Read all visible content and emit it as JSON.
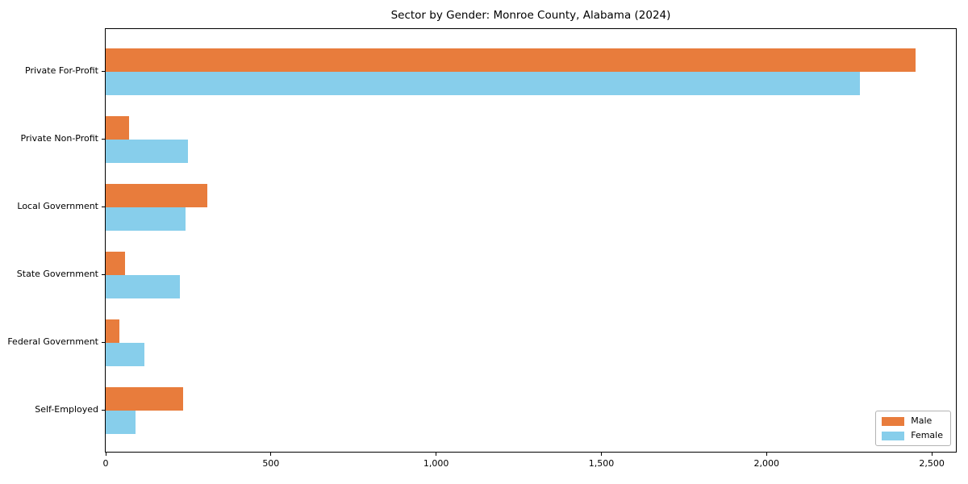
{
  "chart_data": {
    "type": "bar",
    "orientation": "horizontal",
    "title": "Sector by Gender: Monroe County, Alabama (2024)",
    "categories": [
      "Private For-Profit",
      "Private Non-Profit",
      "Local Government",
      "State Government",
      "Federal Government",
      "Self-Employed"
    ],
    "series": [
      {
        "name": "Male",
        "color": "#e87c3c",
        "values": [
          2450,
          71,
          307,
          58,
          41,
          234
        ]
      },
      {
        "name": "Female",
        "color": "#87ceeb",
        "values": [
          2283,
          248,
          241,
          224,
          117,
          90
        ]
      }
    ],
    "xlabel": "",
    "ylabel": "",
    "xlim": [
      0,
      2573
    ],
    "x_ticks": [
      {
        "value": 0,
        "label": "0"
      },
      {
        "value": 500,
        "label": "500"
      },
      {
        "value": 1000,
        "label": "1,000"
      },
      {
        "value": 1500,
        "label": "1,500"
      },
      {
        "value": 2000,
        "label": "2,000"
      },
      {
        "value": 2500,
        "label": "2,500"
      }
    ],
    "grid": false,
    "legend": {
      "position": "lower right",
      "items": [
        "Male",
        "Female"
      ]
    }
  }
}
